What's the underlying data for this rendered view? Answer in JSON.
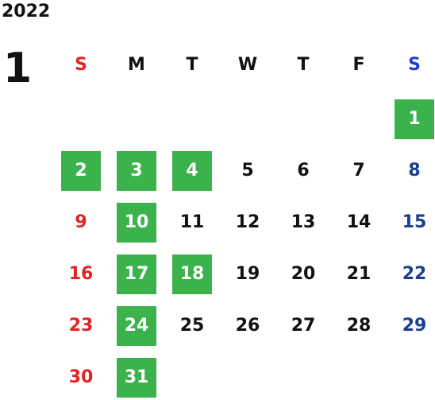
{
  "year": "2022",
  "month": "1",
  "weekdays": [
    "S",
    "M",
    "T",
    "W",
    "T",
    "F",
    "S"
  ],
  "days": [
    {
      "day": "1",
      "col": 6,
      "row": 0,
      "highlight": true
    },
    {
      "day": "2",
      "col": 0,
      "row": 1,
      "highlight": true
    },
    {
      "day": "3",
      "col": 1,
      "row": 1,
      "highlight": true
    },
    {
      "day": "4",
      "col": 2,
      "row": 1,
      "highlight": true
    },
    {
      "day": "5",
      "col": 3,
      "row": 1,
      "highlight": false
    },
    {
      "day": "6",
      "col": 4,
      "row": 1,
      "highlight": false
    },
    {
      "day": "7",
      "col": 5,
      "row": 1,
      "highlight": false
    },
    {
      "day": "8",
      "col": 6,
      "row": 1,
      "highlight": false
    },
    {
      "day": "9",
      "col": 0,
      "row": 2,
      "highlight": false
    },
    {
      "day": "10",
      "col": 1,
      "row": 2,
      "highlight": true
    },
    {
      "day": "11",
      "col": 2,
      "row": 2,
      "highlight": false
    },
    {
      "day": "12",
      "col": 3,
      "row": 2,
      "highlight": false
    },
    {
      "day": "13",
      "col": 4,
      "row": 2,
      "highlight": false
    },
    {
      "day": "14",
      "col": 5,
      "row": 2,
      "highlight": false
    },
    {
      "day": "15",
      "col": 6,
      "row": 2,
      "highlight": false
    },
    {
      "day": "16",
      "col": 0,
      "row": 3,
      "highlight": false
    },
    {
      "day": "17",
      "col": 1,
      "row": 3,
      "highlight": true
    },
    {
      "day": "18",
      "col": 2,
      "row": 3,
      "highlight": true
    },
    {
      "day": "19",
      "col": 3,
      "row": 3,
      "highlight": false
    },
    {
      "day": "20",
      "col": 4,
      "row": 3,
      "highlight": false
    },
    {
      "day": "21",
      "col": 5,
      "row": 3,
      "highlight": false
    },
    {
      "day": "22",
      "col": 6,
      "row": 3,
      "highlight": false
    },
    {
      "day": "23",
      "col": 0,
      "row": 4,
      "highlight": false
    },
    {
      "day": "24",
      "col": 1,
      "row": 4,
      "highlight": true
    },
    {
      "day": "25",
      "col": 2,
      "row": 4,
      "highlight": false
    },
    {
      "day": "26",
      "col": 3,
      "row": 4,
      "highlight": false
    },
    {
      "day": "27",
      "col": 4,
      "row": 4,
      "highlight": false
    },
    {
      "day": "28",
      "col": 5,
      "row": 4,
      "highlight": false
    },
    {
      "day": "29",
      "col": 6,
      "row": 4,
      "highlight": false
    },
    {
      "day": "30",
      "col": 0,
      "row": 5,
      "highlight": false
    },
    {
      "day": "31",
      "col": 1,
      "row": 5,
      "highlight": true
    }
  ],
  "colors": {
    "highlight": "#3cb24d",
    "sunday": "#e02424",
    "saturday": "#1a3f8f",
    "saturday_header": "#1f3fcf",
    "weekday": "#111111"
  }
}
